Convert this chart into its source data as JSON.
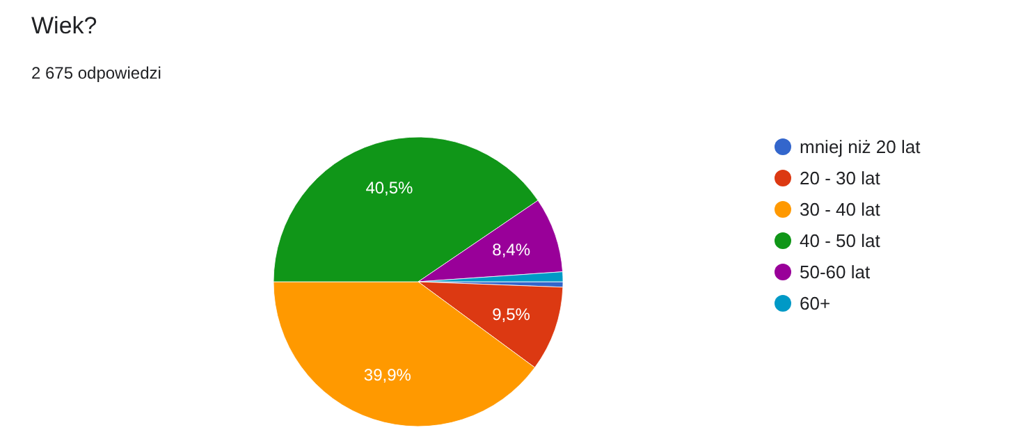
{
  "chart_data": {
    "type": "pie",
    "title": "Wiek?",
    "subtitle": "2 675 odpowiedzi",
    "categories": [
      "mniej niż 20 lat",
      "20 - 30 lat",
      "30 - 40 lat",
      "40 - 50 lat",
      "50-60 lat",
      "60+"
    ],
    "values": [
      0.6,
      9.5,
      39.9,
      40.5,
      8.4,
      1.1
    ],
    "colors": [
      "#3366cc",
      "#dc3912",
      "#ff9900",
      "#109618",
      "#990099",
      "#0099c6"
    ],
    "value_labels": [
      null,
      "9,5%",
      "39,9%",
      "40,5%",
      "8,4%",
      null
    ],
    "legend": "right"
  }
}
